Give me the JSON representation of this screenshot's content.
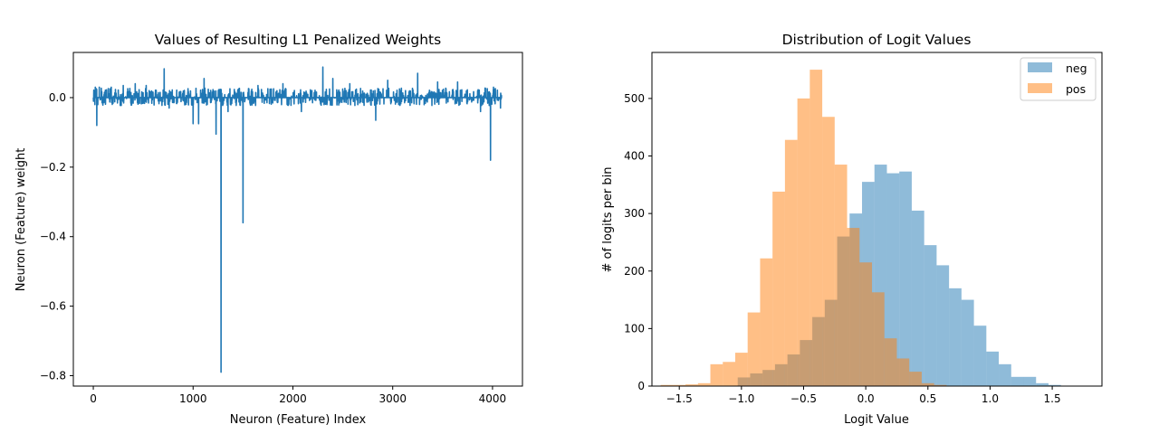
{
  "chart_data": [
    {
      "type": "line",
      "title": "Values of Resulting L1 Penalized Weights",
      "xlabel": "Neuron (Feature) Index",
      "ylabel": "Neuron (Feature) weight",
      "xlim": [
        -200,
        4300
      ],
      "ylim": [
        -0.83,
        0.13
      ],
      "xticks": [
        0,
        1000,
        2000,
        3000,
        4000
      ],
      "xtick_labels": [
        "0",
        "1000",
        "2000",
        "3000",
        "4000"
      ],
      "yticks": [
        0.0,
        -0.2,
        -0.4,
        -0.6,
        -0.8
      ],
      "ytick_labels": [
        "0.0",
        "−0.2",
        "−0.4",
        "−0.6",
        "−0.8"
      ],
      "series_color": "#1f77b4",
      "n_points": 4096,
      "noise_seed": 7,
      "spikes": [
        {
          "x": 20,
          "y": 0.03
        },
        {
          "x": 35,
          "y": -0.08
        },
        {
          "x": 60,
          "y": 0.03
        },
        {
          "x": 180,
          "y": 0.03
        },
        {
          "x": 300,
          "y": 0.035
        },
        {
          "x": 420,
          "y": 0.04
        },
        {
          "x": 530,
          "y": 0.035
        },
        {
          "x": 710,
          "y": 0.083
        },
        {
          "x": 760,
          "y": -0.03
        },
        {
          "x": 1000,
          "y": -0.075
        },
        {
          "x": 1055,
          "y": -0.075
        },
        {
          "x": 1110,
          "y": 0.055
        },
        {
          "x": 1230,
          "y": -0.105
        },
        {
          "x": 1280,
          "y": -0.79
        },
        {
          "x": 1300,
          "y": -0.02
        },
        {
          "x": 1350,
          "y": -0.04
        },
        {
          "x": 1500,
          "y": -0.36
        },
        {
          "x": 1650,
          "y": 0.035
        },
        {
          "x": 1900,
          "y": 0.04
        },
        {
          "x": 2085,
          "y": -0.04
        },
        {
          "x": 2300,
          "y": 0.088
        },
        {
          "x": 2400,
          "y": 0.055
        },
        {
          "x": 2570,
          "y": 0.04
        },
        {
          "x": 2830,
          "y": -0.065
        },
        {
          "x": 2950,
          "y": 0.05
        },
        {
          "x": 3250,
          "y": 0.07
        },
        {
          "x": 3450,
          "y": 0.045
        },
        {
          "x": 3650,
          "y": 0.045
        },
        {
          "x": 3880,
          "y": -0.04
        },
        {
          "x": 3980,
          "y": -0.18
        },
        {
          "x": 4010,
          "y": 0.03
        },
        {
          "x": 4080,
          "y": -0.03
        }
      ]
    },
    {
      "type": "histogram",
      "title": "Distribution of Logit Values",
      "xlabel": "Logit Value",
      "ylabel": "# of logits per bin",
      "xlim": [
        -1.72,
        1.9
      ],
      "ylim": [
        0,
        580
      ],
      "xticks": [
        -1.5,
        -1.0,
        -0.5,
        0.0,
        0.5,
        1.0,
        1.5
      ],
      "xtick_labels": [
        "−1.5",
        "−1.0",
        "−0.5",
        "0.0",
        "0.5",
        "1.0",
        "1.5"
      ],
      "yticks": [
        0,
        100,
        200,
        300,
        400,
        500
      ],
      "ytick_labels": [
        "0",
        "100",
        "200",
        "300",
        "400",
        "500"
      ],
      "legend_position": "top-right",
      "series": [
        {
          "name": "neg",
          "color": "#1f77b4",
          "alpha": 0.5,
          "bin_start": -1.03,
          "bin_width": 0.1,
          "values": [
            15,
            22,
            28,
            38,
            55,
            80,
            120,
            150,
            260,
            300,
            355,
            385,
            370,
            373,
            305,
            245,
            210,
            170,
            150,
            105,
            60,
            38,
            16,
            16,
            5,
            2
          ]
        },
        {
          "name": "pos",
          "color": "#ff7f0e",
          "alpha": 0.5,
          "bin_start": -1.65,
          "bin_width": 0.1,
          "values": [
            2,
            2,
            3,
            5,
            38,
            42,
            58,
            128,
            222,
            338,
            428,
            500,
            550,
            468,
            385,
            275,
            215,
            163,
            83,
            48,
            25,
            5,
            2
          ]
        }
      ]
    }
  ]
}
